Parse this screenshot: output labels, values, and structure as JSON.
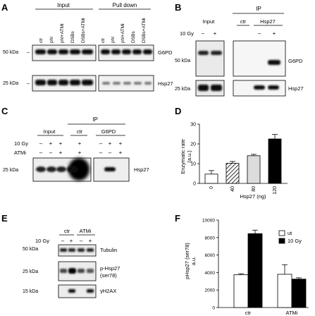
{
  "panelA": {
    "letter": "A",
    "header_left": "Input",
    "header_right": "Pull down",
    "lanes_left": [
      "ctr",
      "phl",
      "phl+ATMi",
      "DSBs",
      "DSBs+ATMi"
    ],
    "lanes_right": [
      "ctr",
      "phl",
      "phl+ATMi",
      "DSBs",
      "DSBs+ATMi"
    ],
    "mw": [
      "50 kDa",
      "25 kDa"
    ],
    "bands": [
      "G6PD",
      "Hsp27"
    ]
  },
  "panelB": {
    "letter": "B",
    "ip": "IP",
    "input": "Input",
    "ctr": "ctr",
    "hsp27": "Hsp27",
    "gy": "10 Gy",
    "signs": [
      "–",
      "+",
      "–",
      "+"
    ],
    "mw": [
      "50 kDa",
      "25 kDa"
    ],
    "bands": [
      "G6PD",
      "Hsp27"
    ]
  },
  "panelC": {
    "letter": "C",
    "ip": "IP",
    "input": "Input",
    "ctr": "ctr",
    "g6pd": "G6PD",
    "gy": "10 Gy",
    "atmi": "ATMi",
    "gy_signs": [
      "–",
      "+",
      "+",
      "+",
      "–",
      "+",
      "+"
    ],
    "atmi_signs": [
      "–",
      "–",
      "+",
      "+",
      "–",
      "–",
      "+"
    ],
    "mw": "25 kDa",
    "band": "Hsp27"
  },
  "panelD": {
    "letter": "D",
    "ylabel": "Enzymatic rate",
    "ylabel2": "(a.u.)",
    "xlabel": "Hsp27 (ng)",
    "yticks": [
      "0",
      "10",
      "20",
      "30"
    ],
    "colors": {
      "c0": "#ffffff",
      "c1": "#ffffff",
      "c2": "#dcdcdc",
      "c3": "#000000"
    }
  },
  "panelE": {
    "letter": "E",
    "ctr": "ctr",
    "atmi": "ATMi",
    "gy": "10 Gy",
    "signs": [
      "–",
      "+",
      "–",
      "+"
    ],
    "mw": [
      "50 kDa",
      "25 kDa",
      "15 kDa"
    ],
    "bands": [
      "Tubulin",
      "p-Hsp27",
      "(ser78)",
      "γH2AX"
    ]
  },
  "panelF": {
    "letter": "F",
    "ylabel": "pHsp27 (ser78)",
    "ylabel2": "a.u.",
    "yticks": [
      "0",
      "2000",
      "4000",
      "6000",
      "8000",
      "10000"
    ],
    "legend": [
      "ut",
      "10 Gy"
    ]
  },
  "chart_data": [
    {
      "type": "bar",
      "categories": [
        "0",
        "40",
        "80",
        "120"
      ],
      "values": [
        4.7,
        10.2,
        14.0,
        22.5
      ],
      "errors": [
        1.8,
        0.9,
        0.7,
        2.3
      ],
      "xlabel": "Hsp27 (ng)",
      "ylabel": "Enzymatic rate (a.u.)",
      "ylim": [
        0,
        30
      ]
    },
    {
      "type": "bar",
      "categories": [
        "ctr",
        "ATMi"
      ],
      "series": [
        {
          "name": "ut",
          "values": [
            3750,
            3800
          ],
          "errors": [
            120,
            1100
          ]
        },
        {
          "name": "10 Gy",
          "values": [
            8450,
            3250
          ],
          "errors": [
            400,
            150
          ]
        }
      ],
      "ylabel": "pHsp27 (ser78) a.u.",
      "ylim": [
        0,
        10000
      ],
      "legend": "top-right"
    }
  ]
}
